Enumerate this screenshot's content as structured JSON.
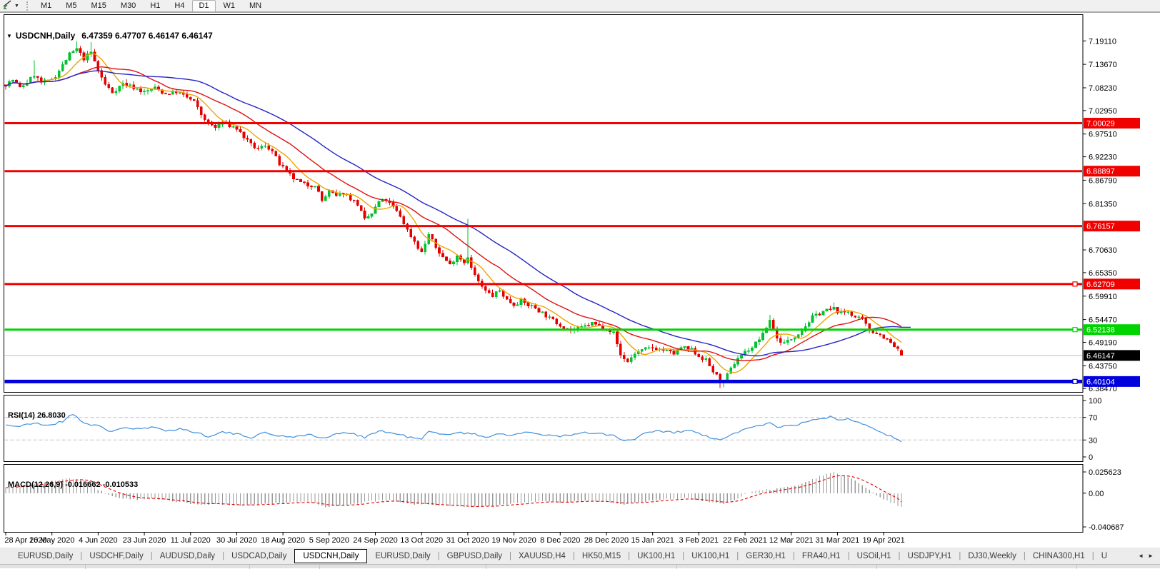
{
  "toolbar": {
    "chart_type_icon": "chart-shift-icon",
    "dropdown_icon": "chevron-down-icon",
    "timeframes": [
      {
        "label": "M1",
        "active": false
      },
      {
        "label": "M5",
        "active": false
      },
      {
        "label": "M15",
        "active": false
      },
      {
        "label": "M30",
        "active": false
      },
      {
        "label": "H1",
        "active": false
      },
      {
        "label": "H4",
        "active": false
      },
      {
        "label": "D1",
        "active": true
      },
      {
        "label": "W1",
        "active": false
      },
      {
        "label": "MN",
        "active": false
      }
    ]
  },
  "chart_header": {
    "symbol_label": "USDCNH,Daily",
    "ohlc_label": "6.47359 6.47707 6.46147 6.46147"
  },
  "chart_data": {
    "type": "candlestick",
    "symbol": "USDCNH",
    "timeframe": "Daily",
    "current_bar": {
      "open": 6.47359,
      "high": 6.47707,
      "low": 6.46147,
      "close": 6.46147
    },
    "ylim": [
      6.376,
      7.252
    ],
    "y_ticks": [
      "7.19110",
      "7.13670",
      "7.08230",
      "7.02950",
      "6.97510",
      "6.92230",
      "6.86790",
      "6.81350",
      "6.70630",
      "6.65350",
      "6.59910",
      "6.54470",
      "6.49190",
      "6.43750",
      "6.38470"
    ],
    "x_tick_dates": [
      "28 Apr 2020",
      "16 May 2020",
      "4 Jun 2020",
      "23 Jun 2020",
      "11 Jul 2020",
      "30 Jul 2020",
      "18 Aug 2020",
      "5 Sep 2020",
      "24 Sep 2020",
      "13 Oct 2020",
      "31 Oct 2020",
      "19 Nov 2020",
      "8 Dec 2020",
      "28 Dec 2020",
      "15 Jan 2021",
      "3 Feb 2021",
      "22 Feb 2021",
      "12 Mar 2021",
      "31 Mar 2021",
      "19 Apr 2021"
    ],
    "days_per_x_tick": 13,
    "total_days": 253,
    "bull_color": "#00c232",
    "bear_color": "#e60000",
    "horizontal_lines": [
      {
        "label": "7.00029",
        "price": 7.00029,
        "color": "#f10000",
        "width": 3,
        "handle": false
      },
      {
        "label": "6.88897",
        "price": 6.88897,
        "color": "#f10000",
        "width": 3,
        "handle": false
      },
      {
        "label": "6.76157",
        "price": 6.76157,
        "color": "#f10000",
        "width": 3,
        "handle": false
      },
      {
        "label": "6.62709",
        "price": 6.62709,
        "color": "#f10000",
        "width": 3,
        "handle": true
      },
      {
        "label": "6.52138",
        "price": 6.52138,
        "color": "#00d400",
        "width": 3,
        "handle": true
      },
      {
        "label": "6.40104",
        "price": 6.40104,
        "color": "#0000dd",
        "width": 5,
        "handle": true
      }
    ],
    "current_price_line": {
      "label": "6.46147",
      "price": 6.46147,
      "color": "#bcbcbc",
      "tag_bg": "#000000"
    },
    "moving_averages": [
      {
        "name": "ma-fast",
        "color": "#efa400",
        "period": 8
      },
      {
        "name": "ma-medium",
        "color": "#e01212",
        "period": 21
      },
      {
        "name": "ma-slow",
        "color": "#2424c6",
        "period": 40
      }
    ],
    "price_close_anchors": [
      [
        0,
        7.09
      ],
      [
        2,
        7.1
      ],
      [
        4,
        7.082
      ],
      [
        6,
        7.095
      ],
      [
        8,
        7.112
      ],
      [
        10,
        7.095
      ],
      [
        12,
        7.098
      ],
      [
        14,
        7.11
      ],
      [
        16,
        7.135
      ],
      [
        18,
        7.16
      ],
      [
        20,
        7.172
      ],
      [
        22,
        7.15
      ],
      [
        24,
        7.165
      ],
      [
        26,
        7.122
      ],
      [
        28,
        7.09
      ],
      [
        30,
        7.072
      ],
      [
        33,
        7.093
      ],
      [
        36,
        7.083
      ],
      [
        39,
        7.072
      ],
      [
        42,
        7.082
      ],
      [
        45,
        7.068
      ],
      [
        48,
        7.073
      ],
      [
        51,
        7.06
      ],
      [
        53,
        7.05
      ],
      [
        55,
        7.02
      ],
      [
        57,
        7.0
      ],
      [
        59,
        6.99
      ],
      [
        61,
        7.003
      ],
      [
        63,
        6.995
      ],
      [
        65,
        6.988
      ],
      [
        67,
        6.968
      ],
      [
        69,
        6.95
      ],
      [
        71,
        6.94
      ],
      [
        73,
        6.95
      ],
      [
        75,
        6.935
      ],
      [
        77,
        6.905
      ],
      [
        79,
        6.888
      ],
      [
        81,
        6.872
      ],
      [
        83,
        6.862
      ],
      [
        85,
        6.856
      ],
      [
        87,
        6.858
      ],
      [
        89,
        6.82
      ],
      [
        91,
        6.842
      ],
      [
        93,
        6.83
      ],
      [
        95,
        6.84
      ],
      [
        97,
        6.826
      ],
      [
        99,
        6.812
      ],
      [
        101,
        6.776
      ],
      [
        103,
        6.79
      ],
      [
        105,
        6.818
      ],
      [
        107,
        6.822
      ],
      [
        109,
        6.805
      ],
      [
        111,
        6.785
      ],
      [
        113,
        6.752
      ],
      [
        115,
        6.726
      ],
      [
        117,
        6.7
      ],
      [
        119,
        6.742
      ],
      [
        121,
        6.712
      ],
      [
        123,
        6.69
      ],
      [
        125,
        6.672
      ],
      [
        127,
        6.694
      ],
      [
        129,
        6.678
      ],
      [
        130,
        6.692
      ],
      [
        131,
        6.664
      ],
      [
        133,
        6.632
      ],
      [
        135,
        6.61
      ],
      [
        137,
        6.6
      ],
      [
        139,
        6.612
      ],
      [
        141,
        6.59
      ],
      [
        143,
        6.58
      ],
      [
        145,
        6.588
      ],
      [
        147,
        6.578
      ],
      [
        149,
        6.572
      ],
      [
        151,
        6.56
      ],
      [
        153,
        6.548
      ],
      [
        156,
        6.532
      ],
      [
        159,
        6.52
      ],
      [
        162,
        6.526
      ],
      [
        165,
        6.536
      ],
      [
        167,
        6.53
      ],
      [
        169,
        6.524
      ],
      [
        171,
        6.514
      ],
      [
        173,
        6.462
      ],
      [
        175,
        6.447
      ],
      [
        177,
        6.466
      ],
      [
        180,
        6.476
      ],
      [
        182,
        6.48
      ],
      [
        185,
        6.474
      ],
      [
        188,
        6.466
      ],
      [
        190,
        6.48
      ],
      [
        193,
        6.474
      ],
      [
        195,
        6.46
      ],
      [
        197,
        6.45
      ],
      [
        199,
        6.424
      ],
      [
        201,
        6.404
      ],
      [
        202,
        6.4
      ],
      [
        204,
        6.43
      ],
      [
        206,
        6.456
      ],
      [
        208,
        6.47
      ],
      [
        210,
        6.48
      ],
      [
        213,
        6.51
      ],
      [
        215,
        6.544
      ],
      [
        217,
        6.5
      ],
      [
        219,
        6.49
      ],
      [
        221,
        6.5
      ],
      [
        224,
        6.52
      ],
      [
        227,
        6.55
      ],
      [
        230,
        6.564
      ],
      [
        233,
        6.57
      ],
      [
        235,
        6.56
      ],
      [
        237,
        6.564
      ],
      [
        239,
        6.55
      ],
      [
        241,
        6.544
      ],
      [
        243,
        6.52
      ],
      [
        245,
        6.514
      ],
      [
        247,
        6.504
      ],
      [
        249,
        6.49
      ],
      [
        251,
        6.474
      ],
      [
        252,
        6.4615
      ]
    ],
    "wick_spikes": [
      {
        "day": 8,
        "high": 7.146
      },
      {
        "day": 20,
        "high": 7.1911
      },
      {
        "day": 24,
        "high": 7.188
      },
      {
        "day": 130,
        "high": 6.778
      },
      {
        "day": 201,
        "low": 6.3856
      },
      {
        "day": 202,
        "low": 6.388
      },
      {
        "day": 215,
        "high": 6.556
      },
      {
        "day": 233,
        "high": 6.585
      }
    ],
    "rsi": {
      "label": "RSI(14) 26.8030",
      "period": 14,
      "value": 26.803,
      "color": "#3f90dc",
      "levels": [
        70,
        30
      ],
      "axis_ticks": [
        "100",
        "70",
        "30",
        "0"
      ],
      "anchors": [
        [
          0,
          57
        ],
        [
          4,
          54
        ],
        [
          8,
          60
        ],
        [
          12,
          56
        ],
        [
          16,
          63
        ],
        [
          19,
          77
        ],
        [
          22,
          60
        ],
        [
          26,
          55
        ],
        [
          29,
          45
        ],
        [
          33,
          52
        ],
        [
          37,
          49
        ],
        [
          41,
          52
        ],
        [
          45,
          47
        ],
        [
          49,
          50
        ],
        [
          53,
          44
        ],
        [
          57,
          37
        ],
        [
          61,
          44
        ],
        [
          65,
          40
        ],
        [
          69,
          35
        ],
        [
          73,
          43
        ],
        [
          77,
          37
        ],
        [
          81,
          36
        ],
        [
          85,
          40
        ],
        [
          89,
          33
        ],
        [
          93,
          40
        ],
        [
          97,
          43
        ],
        [
          101,
          35
        ],
        [
          105,
          46
        ],
        [
          109,
          42
        ],
        [
          113,
          36
        ],
        [
          117,
          31
        ],
        [
          119,
          45
        ],
        [
          123,
          39
        ],
        [
          127,
          44
        ],
        [
          131,
          41
        ],
        [
          135,
          35
        ],
        [
          139,
          42
        ],
        [
          143,
          38
        ],
        [
          147,
          44
        ],
        [
          151,
          40
        ],
        [
          155,
          37
        ],
        [
          159,
          38
        ],
        [
          163,
          43
        ],
        [
          167,
          41
        ],
        [
          171,
          38
        ],
        [
          173,
          30
        ],
        [
          176,
          29
        ],
        [
          180,
          42
        ],
        [
          184,
          46
        ],
        [
          188,
          43
        ],
        [
          192,
          47
        ],
        [
          195,
          42
        ],
        [
          199,
          32
        ],
        [
          201,
          29
        ],
        [
          204,
          39
        ],
        [
          207,
          47
        ],
        [
          210,
          52
        ],
        [
          213,
          57
        ],
        [
          215,
          62
        ],
        [
          217,
          53
        ],
        [
          220,
          55
        ],
        [
          223,
          58
        ],
        [
          226,
          63
        ],
        [
          229,
          68
        ],
        [
          232,
          71
        ],
        [
          234,
          66
        ],
        [
          237,
          69
        ],
        [
          240,
          62
        ],
        [
          243,
          54
        ],
        [
          246,
          46
        ],
        [
          249,
          36
        ],
        [
          252,
          26.8
        ]
      ]
    },
    "macd": {
      "label": "MACD(12,26,9) -0.016662 -0.010533",
      "macd_value": -0.016662,
      "signal_value": -0.010533,
      "histogram_color": "#9b9b9b",
      "signal_color": "#e00000",
      "axis_ticks": [
        "0.025623",
        "0.00",
        "-0.040687"
      ],
      "anchors": [
        [
          0,
          0.007
        ],
        [
          6,
          0.01
        ],
        [
          12,
          0.014
        ],
        [
          18,
          0.018
        ],
        [
          22,
          0.016
        ],
        [
          26,
          0.004
        ],
        [
          30,
          -0.004
        ],
        [
          36,
          -0.008
        ],
        [
          42,
          -0.007
        ],
        [
          48,
          -0.01
        ],
        [
          54,
          -0.014
        ],
        [
          60,
          -0.013
        ],
        [
          66,
          -0.015
        ],
        [
          72,
          -0.013
        ],
        [
          78,
          -0.012
        ],
        [
          84,
          -0.01
        ],
        [
          90,
          -0.016
        ],
        [
          96,
          -0.015
        ],
        [
          102,
          -0.01
        ],
        [
          108,
          -0.008
        ],
        [
          114,
          -0.013
        ],
        [
          120,
          -0.014
        ],
        [
          126,
          -0.016
        ],
        [
          132,
          -0.017
        ],
        [
          138,
          -0.015
        ],
        [
          144,
          -0.012
        ],
        [
          150,
          -0.01
        ],
        [
          156,
          -0.011
        ],
        [
          162,
          -0.009
        ],
        [
          168,
          -0.01
        ],
        [
          174,
          -0.013
        ],
        [
          180,
          -0.01
        ],
        [
          186,
          -0.007
        ],
        [
          192,
          -0.006
        ],
        [
          198,
          -0.011
        ],
        [
          202,
          -0.013
        ],
        [
          206,
          -0.006
        ],
        [
          210,
          0.002
        ],
        [
          214,
          0.004
        ],
        [
          218,
          0.006
        ],
        [
          222,
          0.009
        ],
        [
          226,
          0.015
        ],
        [
          230,
          0.022
        ],
        [
          233,
          0.0255
        ],
        [
          236,
          0.021
        ],
        [
          239,
          0.015
        ],
        [
          242,
          0.007
        ],
        [
          245,
          -0.002
        ],
        [
          248,
          -0.009
        ],
        [
          252,
          -0.016662
        ]
      ]
    }
  },
  "bottom_tabs": {
    "separator_glyph": "|",
    "scroll_left_icon": "scroll-left-arrow-icon",
    "scroll_right_icon": "scroll-right-arrow-icon",
    "scroll_left_glyph": "◄",
    "scroll_right_glyph": "►",
    "items": [
      {
        "label": "EURUSD,Daily",
        "active": false
      },
      {
        "label": "USDCHF,Daily",
        "active": false
      },
      {
        "label": "AUDUSD,Daily",
        "active": false
      },
      {
        "label": "USDCAD,Daily",
        "active": false
      },
      {
        "label": "USDCNH,Daily",
        "active": true
      },
      {
        "label": "EURUSD,Daily",
        "active": false
      },
      {
        "label": "GBPUSD,Daily",
        "active": false
      },
      {
        "label": "XAUUSD,H4",
        "active": false
      },
      {
        "label": "HK50,M15",
        "active": false
      },
      {
        "label": "UK100,H1",
        "active": false
      },
      {
        "label": "UK100,H1",
        "active": false
      },
      {
        "label": "GER30,H1",
        "active": false
      },
      {
        "label": "FRA40,H1",
        "active": false
      },
      {
        "label": "USOil,H1",
        "active": false
      },
      {
        "label": "USDJPY,H1",
        "active": false
      },
      {
        "label": "DJ30,Weekly",
        "active": false
      },
      {
        "label": "CHINA300,H1",
        "active": false
      },
      {
        "label": "U",
        "active": false,
        "partial": true
      }
    ]
  }
}
